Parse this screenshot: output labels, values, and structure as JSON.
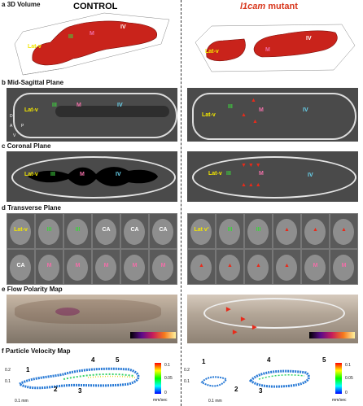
{
  "panels": {
    "a": {
      "letter": "a",
      "title": "3D Volume"
    },
    "b": {
      "letter": "b",
      "title": "Mid-Sagittal Plane"
    },
    "c": {
      "letter": "c",
      "title": "Coronal Plane"
    },
    "d": {
      "letter": "d",
      "title": "Transverse Plane"
    },
    "e": {
      "letter": "e",
      "title": "Flow Polarity Map"
    },
    "f": {
      "letter": "f",
      "title": "Particle Velocity Map"
    }
  },
  "columns": {
    "control": "CONTROL",
    "mutant_gene": "l1cam",
    "mutant_suffix": " mutant"
  },
  "labels": {
    "lat_v": "Lat-v",
    "lat_v_prime": "Lat v'",
    "iii": "III",
    "m": "M",
    "iv": "IV",
    "ca": "CA",
    "d": "D",
    "a": "A",
    "p": "P",
    "v": "V"
  },
  "particle": {
    "scale_left": "0.1 mm",
    "scale_right": "0.1 mm",
    "units": "mm/sec",
    "cb_left_top": "0.1",
    "cb_left_mid": "0.05",
    "cb_left_bot": "0",
    "cb_right_top": "0.1",
    "cb_right_mid": "0.05",
    "cb_right_bot": "0",
    "y_ticks": [
      "0.2",
      "0.1"
    ],
    "numbers": [
      "1",
      "2",
      "3",
      "4",
      "5"
    ]
  },
  "colors": {
    "title_red": "#d8381e",
    "colormap": [
      "#0000ff",
      "#00ffff",
      "#00ff00",
      "#ffff00",
      "#ff0000"
    ]
  }
}
